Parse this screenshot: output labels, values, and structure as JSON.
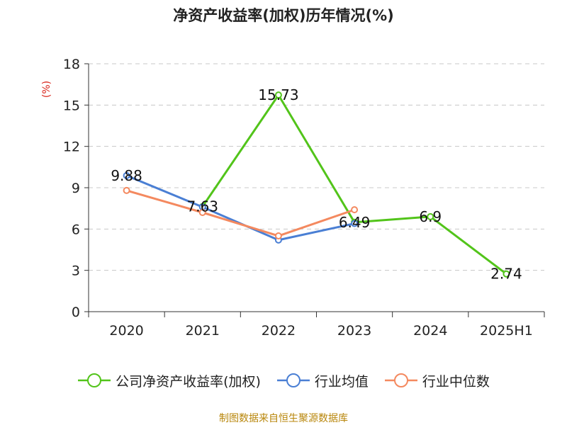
{
  "title": "净资产收益率(加权)历年情况(%)",
  "source": "制图数据来自恒生聚源数据库",
  "chart_data": {
    "type": "line",
    "title": "净资产收益率(加权)历年情况(%)",
    "ylabel": "(%)",
    "xlabel": "",
    "categories": [
      "2020",
      "2021",
      "2022",
      "2023",
      "2024",
      "2025H1"
    ],
    "ylim": [
      0,
      18
    ],
    "yticks": [
      0,
      3,
      6,
      9,
      12,
      15,
      18
    ],
    "grid": "horizontal dashed",
    "legend_position": "bottom",
    "series": [
      {
        "name": "公司净资产收益率(加权)",
        "color": "#52c41a",
        "values": [
          null,
          7.63,
          15.73,
          6.49,
          6.9,
          2.74
        ],
        "labels": [
          null,
          "7.63",
          "15.73",
          "6.49",
          "6.9",
          "2.74"
        ]
      },
      {
        "name": "行业均值",
        "color": "#4a7fd4",
        "values": [
          9.88,
          7.6,
          5.2,
          6.4,
          null,
          null
        ],
        "labels": [
          "9.88",
          null,
          null,
          null,
          null,
          null
        ]
      },
      {
        "name": "行业中位数",
        "color": "#f4895f",
        "values": [
          8.8,
          7.2,
          5.5,
          7.4,
          null,
          null
        ],
        "labels": [
          null,
          null,
          null,
          null,
          null,
          null
        ]
      }
    ]
  }
}
